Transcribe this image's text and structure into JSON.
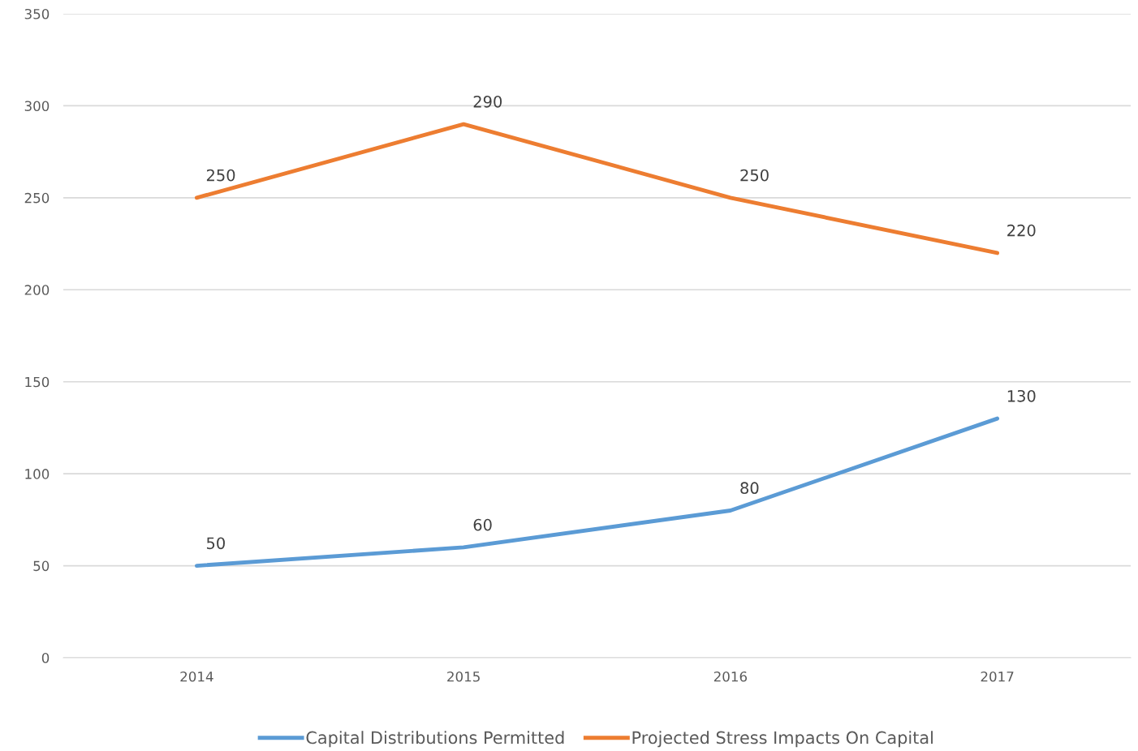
{
  "chart_data": {
    "type": "line",
    "categories": [
      "2014",
      "2015",
      "2016",
      "2017"
    ],
    "series": [
      {
        "name": "Capital Distributions Permitted",
        "color": "#5b9bd5",
        "values": [
          50,
          60,
          80,
          130
        ]
      },
      {
        "name": "Projected Stress Impacts On Capital",
        "color": "#ed7d31",
        "values": [
          250,
          290,
          250,
          220
        ]
      }
    ],
    "ylim": [
      0,
      350
    ],
    "yticks": [
      0,
      50,
      100,
      150,
      200,
      250,
      300,
      350
    ],
    "grid": "y",
    "legend": "bottom",
    "data_labels": true,
    "marker": "none",
    "line_style": "solid"
  }
}
